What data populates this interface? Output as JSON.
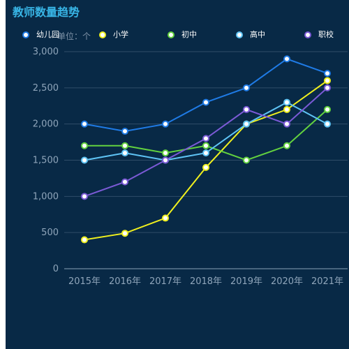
{
  "colors": {
    "background": "#082946",
    "title": "#38b5e6",
    "grid": "#2f4d68",
    "axis": "#8aa2b8"
  },
  "chart_data": {
    "type": "line",
    "title": "教师数量趋势",
    "unit_label": "单位：个",
    "xlabel": "",
    "ylabel": "",
    "categories": [
      "2015年",
      "2016年",
      "2017年",
      "2018年",
      "2019年",
      "2020年",
      "2021年"
    ],
    "ylim": [
      0,
      3000
    ],
    "yticks": [
      0,
      500,
      1000,
      1500,
      2000,
      2500,
      3000
    ],
    "ytick_labels": [
      "0",
      "500",
      "1,000",
      "1,500",
      "2,000",
      "2,500",
      "3,000"
    ],
    "grid": true,
    "legend_position": "top",
    "series": [
      {
        "name": "幼儿园",
        "color": "#1f7be6",
        "values": [
          2000,
          1900,
          2000,
          2300,
          2500,
          2900,
          2700
        ]
      },
      {
        "name": "小学",
        "color": "#f0f01e",
        "values": [
          400,
          490,
          700,
          1400,
          2000,
          2200,
          2600
        ]
      },
      {
        "name": "初中",
        "color": "#63d23f",
        "values": [
          1700,
          1700,
          1600,
          1700,
          1500,
          1700,
          2200
        ]
      },
      {
        "name": "高中",
        "color": "#5fc4f5",
        "values": [
          1500,
          1600,
          1500,
          1600,
          2000,
          2300,
          2000
        ]
      },
      {
        "name": "职校",
        "color": "#7b5ad6",
        "values": [
          1000,
          1200,
          1500,
          1800,
          2200,
          2000,
          2500
        ]
      }
    ]
  }
}
